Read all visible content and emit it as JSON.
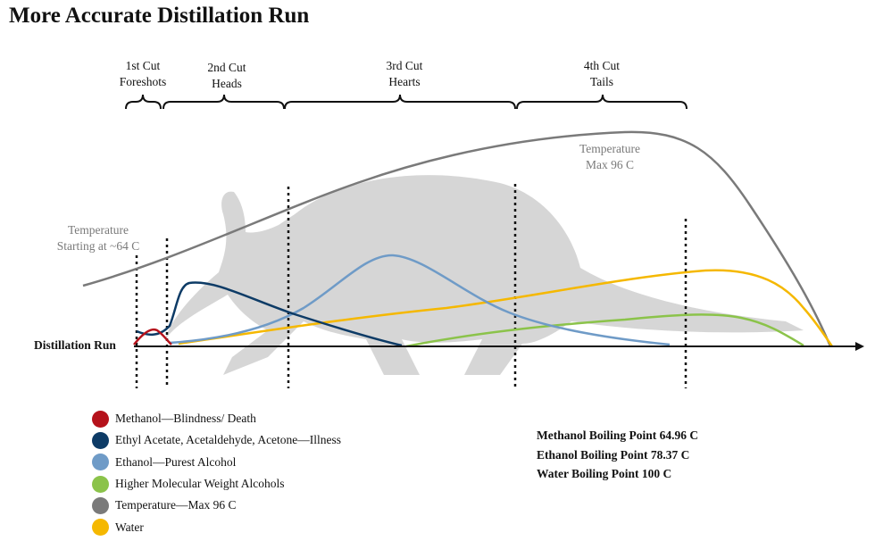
{
  "title": "More Accurate Distillation Run",
  "cuts": [
    {
      "line1": "1st Cut",
      "line2": "Foreshots"
    },
    {
      "line1": "2nd Cut",
      "line2": "Heads"
    },
    {
      "line1": "3rd Cut",
      "line2": "Hearts"
    },
    {
      "line1": "4th Cut",
      "line2": "Tails"
    }
  ],
  "annotations": {
    "temp_start_line1": "Temperature",
    "temp_start_line2": "Starting at ~64 C",
    "temp_max_line1": "Temperature",
    "temp_max_line2": "Max 96 C",
    "axis_label": "Distillation Run"
  },
  "legend": [
    {
      "label": "Methanol—Blindness/ Death",
      "color": "#b5121b"
    },
    {
      "label": "Ethyl Acetate, Acetaldehyde, Acetone—Illness",
      "color": "#0d3b66"
    },
    {
      "label": "Ethanol—Purest Alcohol",
      "color": "#6f9bc7"
    },
    {
      "label": "Higher Molecular Weight Alcohols",
      "color": "#8bc34a"
    },
    {
      "label": "Temperature—Max 96 C",
      "color": "#7a7a7a"
    },
    {
      "label": "Water",
      "color": "#f5b800"
    }
  ],
  "boiling_points": [
    "Methanol Boiling Point 64.96 C",
    "Ethanol Boiling Point 78.37 C",
    "Water Boiling Point 100 C"
  ]
}
